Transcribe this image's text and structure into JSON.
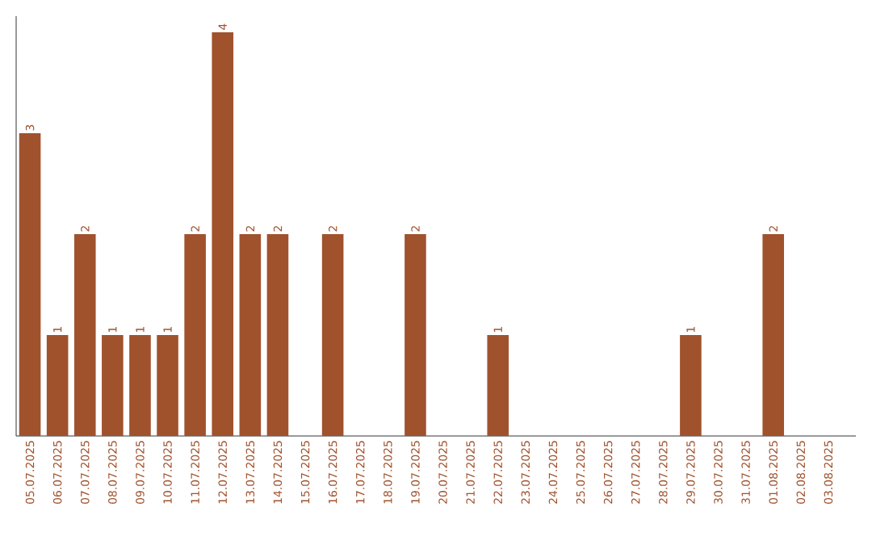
{
  "chart_data": {
    "type": "bar",
    "color": "#a0522d",
    "categories": [
      "05.07.2025",
      "06.07.2025",
      "07.07.2025",
      "08.07.2025",
      "09.07.2025",
      "10.07.2025",
      "11.07.2025",
      "12.07.2025",
      "13.07.2025",
      "14.07.2025",
      "15.07.2025",
      "16.07.2025",
      "17.07.2025",
      "18.07.2025",
      "19.07.2025",
      "20.07.2025",
      "21.07.2025",
      "22.07.2025",
      "23.07.2025",
      "24.07.2025",
      "25.07.2025",
      "26.07.2025",
      "27.07.2025",
      "28.07.2025",
      "29.07.2025",
      "30.07.2025",
      "31.07.2025",
      "01.08.2025",
      "02.08.2025",
      "03.08.2025"
    ],
    "values": [
      3,
      1,
      2,
      1,
      1,
      1,
      2,
      4,
      2,
      2,
      0,
      2,
      0,
      0,
      2,
      0,
      0,
      1,
      0,
      0,
      0,
      0,
      0,
      0,
      1,
      0,
      0,
      2,
      0,
      0
    ],
    "value_labels": [
      "3",
      "1",
      "2",
      "1",
      "1",
      "1",
      "2",
      "4",
      "2",
      "2",
      null,
      "2",
      null,
      null,
      "2",
      null,
      null,
      "1",
      null,
      null,
      null,
      null,
      null,
      null,
      "1",
      null,
      null,
      "2",
      null,
      null
    ],
    "ylim": [
      0,
      4.16
    ],
    "tick_labels": "x"
  }
}
